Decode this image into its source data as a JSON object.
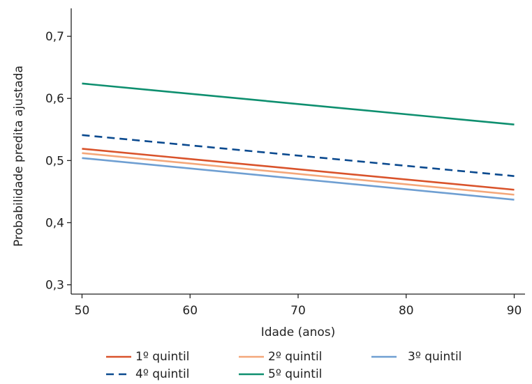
{
  "chart_data": {
    "type": "line",
    "title": "",
    "xlabel": "Idade (anos)",
    "ylabel": "Probabilidade predita ajustada",
    "xlim": [
      49,
      91
    ],
    "ylim": [
      0.285,
      0.745
    ],
    "xticks": [
      50,
      60,
      70,
      80,
      90
    ],
    "xtick_labels": [
      "50",
      "60",
      "70",
      "80",
      "90"
    ],
    "yticks": [
      0.3,
      0.4,
      0.5,
      0.6,
      0.7
    ],
    "ytick_labels": [
      "0,3",
      "0,4",
      "0,5",
      "0,6",
      "0,7"
    ],
    "grid": false,
    "legend_position": "bottom",
    "x": [
      50,
      90
    ],
    "series": [
      {
        "name": "1º quintil",
        "values": [
          0.519,
          0.453
        ],
        "color": "#d9532b",
        "dash": "solid"
      },
      {
        "name": "2º quintil",
        "values": [
          0.512,
          0.445
        ],
        "color": "#f4a77a",
        "dash": "solid"
      },
      {
        "name": "3º quintil",
        "values": [
          0.504,
          0.437
        ],
        "color": "#6f9fd2",
        "dash": "solid"
      },
      {
        "name": "4º quintil",
        "values": [
          0.541,
          0.475
        ],
        "color": "#0b4a8f",
        "dash": "dashed"
      },
      {
        "name": "5º quintil",
        "values": [
          0.624,
          0.558
        ],
        "color": "#0e8f6f",
        "dash": "solid"
      }
    ]
  }
}
